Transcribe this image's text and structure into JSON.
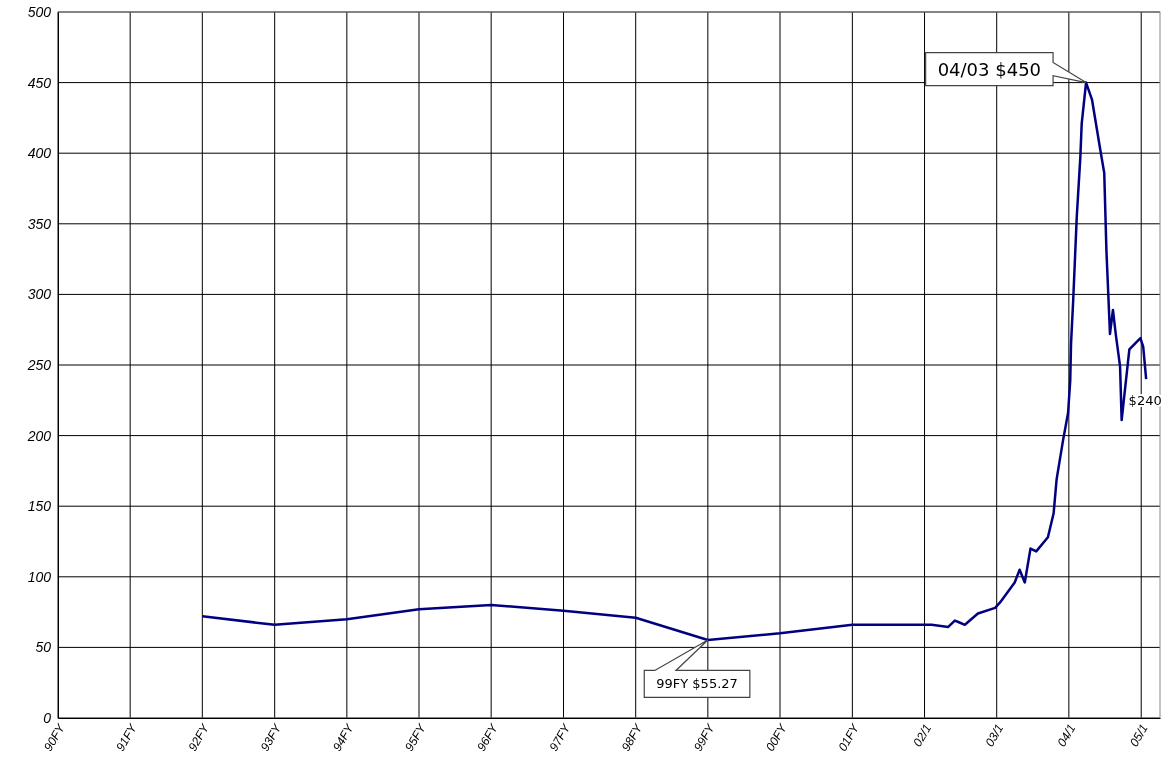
{
  "chart_data": {
    "type": "line",
    "x": [
      "1992",
      "1993",
      "1994",
      "1995",
      "1996",
      "1997",
      "1998",
      "1999",
      "2000",
      "2001",
      "2002",
      "2002-02-06",
      "2002-05-01",
      "2002-06-03",
      "2002-06-21",
      "2002-07-24",
      "2002-09-28",
      "2002-12-24",
      "2003-01-19",
      "2003-04-02",
      "2003-04-27",
      "2003-05-23",
      "2003-06-21",
      "2003-07-20",
      "2003-09-17",
      "2003-10-16",
      "2003-10-31",
      "2003-12-03",
      "2003-12-28",
      "2004-01-08",
      "2004-01-12",
      "2004-01-23",
      "2004-02-10",
      "2004-02-28",
      "2004-03-06",
      "2004-03-28",
      "2004-04-27",
      "2004-06-06",
      "2004-06-28",
      "2004-07-09",
      "2004-07-27",
      "2004-08-11",
      "2004-08-25",
      "2004-09-16",
      "2004-09-24",
      "2004-11-02",
      "2004-12-28",
      "2005-01-11",
      "2005-01-26"
    ],
    "series": [
      {
        "color": "#000080",
        "values": [
          72,
          66,
          70,
          77,
          80,
          76,
          71,
          55.27,
          60,
          66,
          66,
          66,
          64.5,
          69,
          68,
          66,
          74,
          78,
          82,
          96,
          105,
          96,
          120,
          118,
          128,
          145,
          169,
          197,
          216,
          239,
          265,
          296,
          355,
          397,
          421,
          450,
          438,
          404,
          386,
          331,
          272,
          289,
          272,
          249,
          211,
          261,
          269,
          263,
          240
        ]
      }
    ],
    "xlim": [
      "1990",
      "2005-04-06"
    ],
    "xticks": [
      {
        "value": "1990",
        "label": "90FY"
      },
      {
        "value": "1991",
        "label": "91FY"
      },
      {
        "value": "1992",
        "label": "92FY"
      },
      {
        "value": "1993",
        "label": "93FY"
      },
      {
        "value": "1994",
        "label": "94FY"
      },
      {
        "value": "1995",
        "label": "95FY"
      },
      {
        "value": "1996",
        "label": "96FY"
      },
      {
        "value": "1997",
        "label": "97FY"
      },
      {
        "value": "1998",
        "label": "98FY"
      },
      {
        "value": "1999",
        "label": "99FY"
      },
      {
        "value": "2000",
        "label": "00FY"
      },
      {
        "value": "2001",
        "label": "01FY"
      },
      {
        "value": "2002-01",
        "label": "02/1"
      },
      {
        "value": "2003-01",
        "label": "03/1"
      },
      {
        "value": "2004-01",
        "label": "04/1"
      },
      {
        "value": "2005-01",
        "label": "05/1"
      }
    ],
    "ylim": [
      0,
      500
    ],
    "yticks": [
      0,
      50,
      100,
      150,
      200,
      250,
      300,
      350,
      400,
      450,
      500
    ],
    "grid": true,
    "marker": "none",
    "line_style": "solid",
    "annotations": [
      {
        "text": "04/03 $450",
        "x": "2004-03-28",
        "y": 450
      },
      {
        "text": "99FY $55.27",
        "x": "1999",
        "y": 55.27
      },
      {
        "text": "$240",
        "x": "2005-01-26",
        "y": 240
      }
    ]
  }
}
